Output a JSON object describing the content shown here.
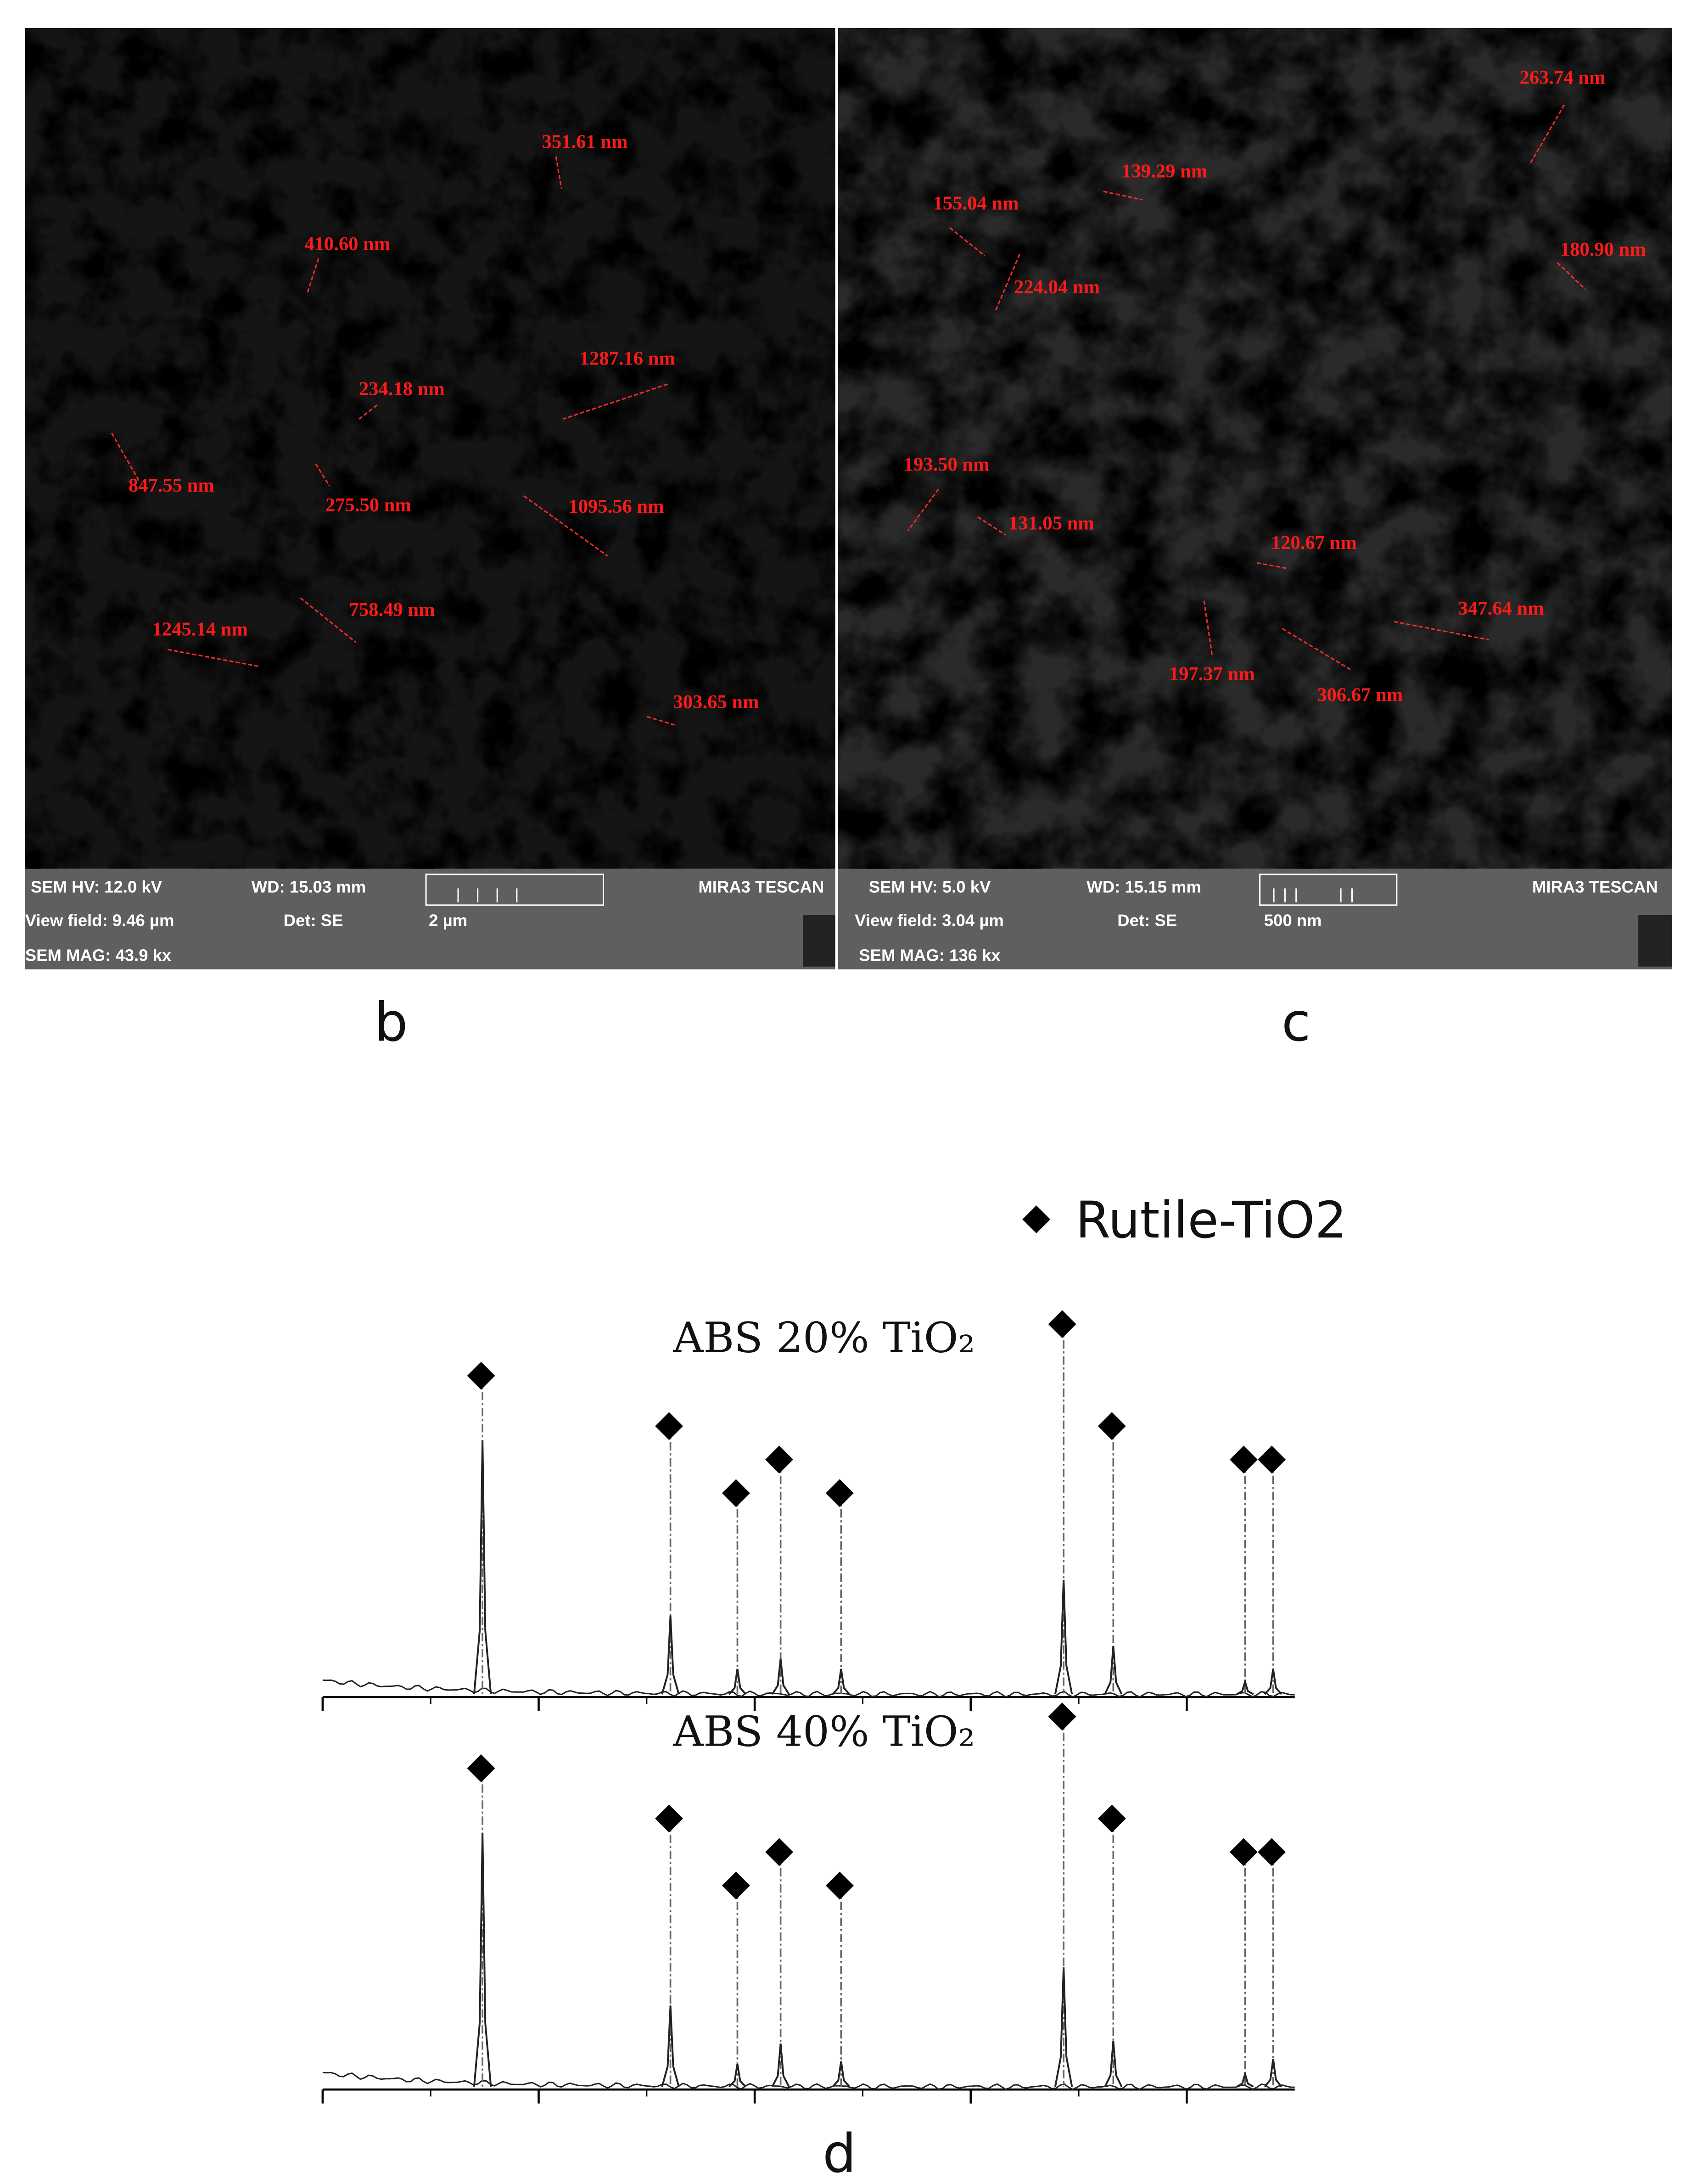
{
  "panels": [
    {
      "label": "b",
      "annotations": [
        "351.61 nm",
        "410.60 nm",
        "1287.16 nm",
        "234.18 nm",
        "847.55 nm",
        "275.50 nm",
        "1095.56 nm",
        "758.49 nm",
        "1245.14 nm",
        "303.65 nm"
      ],
      "info": [
        "SEM HV: 12.0 kV",
        "WD: 15.03 mm",
        "MIRA3 TESCAN",
        "View field: 9.46 µm",
        "Det: SE",
        "2 µm",
        "SEM MAG: 43.9 kx"
      ]
    },
    {
      "label": "c",
      "annotations": [
        "263.74 nm",
        "139.29 nm",
        "155.04 nm",
        "180.90 nm",
        "224.04 nm",
        "193.50 nm",
        "131.05 nm",
        "120.67 nm",
        "347.64 nm",
        "197.37 nm",
        "306.67 nm"
      ],
      "info": [
        "SEM HV: 5.0 kV",
        "WD: 15.15 mm",
        "MIRA3 TESCAN",
        "View field: 3.04 µm",
        "Det: SE",
        "500 nm",
        "SEM MAG: 136 kx"
      ]
    }
  ],
  "chart_data": {
    "type": "line",
    "label": "d",
    "legend": "Rutile-TiO2",
    "xlim": [
      20,
      65
    ],
    "xticks": [
      20,
      30,
      40,
      50,
      60
    ],
    "ylim": [
      0,
      110
    ],
    "peaks_x": [
      27.4,
      36.1,
      39.2,
      41.2,
      44.0,
      54.3,
      56.6,
      62.7,
      64.0
    ],
    "series": [
      {
        "name": "ABS 20% TiO₂",
        "color": "#222222",
        "values": [
          100,
          31,
          10,
          14,
          10,
          45,
          19,
          5,
          10
        ]
      },
      {
        "name": "ABS 40% TiO₂",
        "color": "#222222",
        "values": [
          100,
          32,
          9,
          17,
          10,
          47,
          18,
          5,
          11
        ]
      }
    ]
  }
}
